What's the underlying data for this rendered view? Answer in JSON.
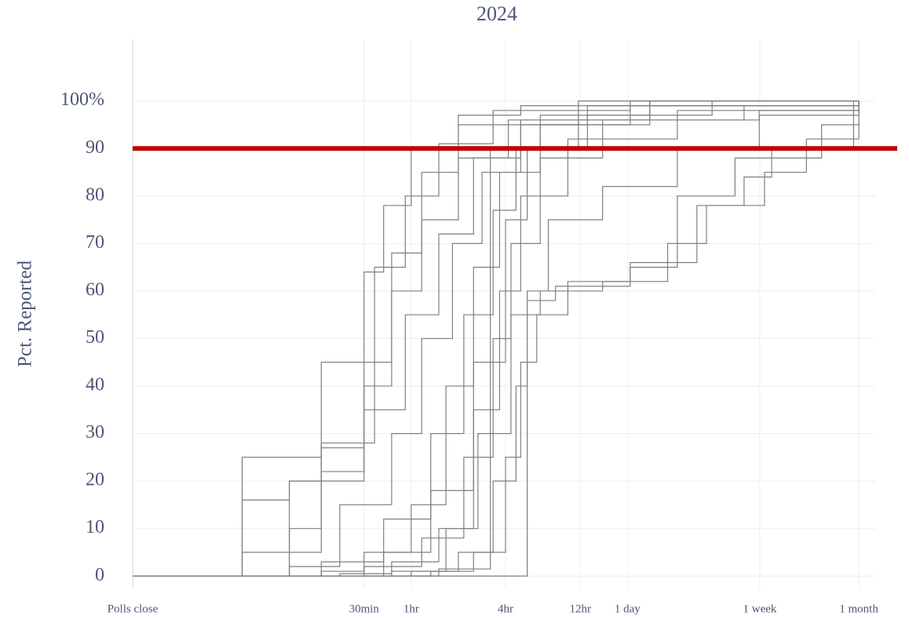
{
  "chart_data": {
    "type": "step-line",
    "title": "2024",
    "y_label": "Pct. Reported",
    "x_log": true,
    "grid": true,
    "xlim": [
      1,
      55000
    ],
    "xticks": [
      {
        "value": 1,
        "label": "Polls close"
      },
      {
        "value": 30,
        "label": "30min"
      },
      {
        "value": 60,
        "label": "1hr"
      },
      {
        "value": 240,
        "label": "4hr"
      },
      {
        "value": 720,
        "label": "12hr"
      },
      {
        "value": 1440,
        "label": "1 day"
      },
      {
        "value": 10080,
        "label": "1 week"
      },
      {
        "value": 43200,
        "label": "1 month"
      }
    ],
    "ylim": [
      -2.6,
      113
    ],
    "yticks": [
      0,
      10,
      20,
      30,
      40,
      50,
      60,
      70,
      80,
      90,
      {
        "value": 100,
        "label": "100%"
      }
    ],
    "hline": {
      "value": 90,
      "color": "#c00000"
    },
    "line_color": "#7f7f7f",
    "series": [
      {
        "x": [
          1,
          5,
          16,
          30,
          40,
          60,
          120,
          300,
          2000,
          43200
        ],
        "values": [
          0,
          25,
          45,
          64,
          78,
          90,
          97,
          99,
          100,
          100
        ]
      },
      {
        "x": [
          1,
          10,
          16,
          35,
          55,
          90,
          200,
          1500,
          43200
        ],
        "values": [
          0,
          20,
          28,
          65,
          80,
          91,
          98,
          100,
          100
        ]
      },
      {
        "x": [
          1,
          5,
          16,
          30,
          45,
          70,
          120,
          250,
          800,
          43200
        ],
        "values": [
          0,
          5,
          27,
          40,
          60,
          75,
          88,
          96,
          99,
          100
        ]
      },
      {
        "x": [
          1,
          10,
          21,
          45,
          70,
          110,
          170,
          300,
          1500,
          43200
        ],
        "values": [
          0,
          2,
          15,
          30,
          50,
          70,
          85,
          95,
          99,
          100
        ]
      },
      {
        "x": [
          1,
          16,
          30,
          60,
          100,
          150,
          220,
          400,
          2000,
          43200
        ],
        "values": [
          0,
          1,
          5,
          15,
          40,
          65,
          85,
          95,
          99,
          100
        ]
      },
      {
        "x": [
          1,
          21,
          45,
          90,
          150,
          220,
          300,
          600,
          3000,
          43200
        ],
        "values": [
          0,
          0.5,
          3,
          10,
          35,
          60,
          80,
          92,
          98,
          100
        ]
      },
      {
        "x": [
          1,
          30,
          70,
          130,
          200,
          260,
          400,
          1000,
          8000,
          43200
        ],
        "values": [
          0,
          2,
          8,
          25,
          50,
          70,
          88,
          96,
          99,
          100
        ]
      },
      {
        "x": [
          1,
          45,
          100,
          160,
          260,
          400,
          1000,
          2600,
          4600,
          10800,
          20000,
          43200
        ],
        "values": [
          0,
          1,
          10,
          30,
          55,
          60,
          62,
          70,
          78,
          85,
          92,
          99
        ]
      },
      {
        "x": [
          1,
          60,
          120,
          200,
          280,
          330,
          500,
          1500,
          3000,
          7000,
          25000,
          43200
        ],
        "values": [
          0,
          1,
          5,
          20,
          40,
          58,
          61,
          65,
          80,
          88,
          95,
          100
        ]
      },
      {
        "x": [
          1,
          330,
          450,
          1000,
          3000,
          10000,
          43200
        ],
        "values": [
          0,
          60,
          75,
          82,
          90,
          97,
          100
        ]
      },
      {
        "x": [
          1,
          90,
          192,
          400,
          2000,
          43200
        ],
        "values": [
          0,
          1.5,
          90,
          97,
          100,
          100
        ]
      },
      {
        "x": [
          1,
          5,
          10,
          30,
          45,
          70,
          120,
          700,
          43200
        ],
        "values": [
          0,
          16,
          20,
          45,
          68,
          85,
          95,
          100,
          100
        ]
      },
      {
        "x": [
          1,
          40,
          80,
          150,
          240,
          330,
          800,
          5000,
          43200
        ],
        "values": [
          0,
          5,
          18,
          45,
          75,
          90,
          97,
          100,
          100
        ]
      },
      {
        "x": [
          1,
          16,
          40,
          80,
          130,
          200,
          280,
          700,
          10000,
          43200
        ],
        "values": [
          0,
          3,
          12,
          30,
          55,
          77,
          90,
          96,
          98,
          100
        ]
      },
      {
        "x": [
          1,
          80,
          150,
          240,
          300,
          380,
          600,
          1500,
          4000,
          8000,
          12000,
          40000
        ],
        "values": [
          0,
          1,
          5,
          25,
          45,
          55,
          62,
          66,
          78,
          84,
          90,
          100
        ]
      },
      {
        "x": [
          1,
          10,
          16,
          30,
          55,
          90,
          150,
          300,
          2000,
          43200
        ],
        "values": [
          0,
          10,
          22,
          35,
          55,
          72,
          88,
          96,
          99,
          100
        ]
      }
    ]
  }
}
